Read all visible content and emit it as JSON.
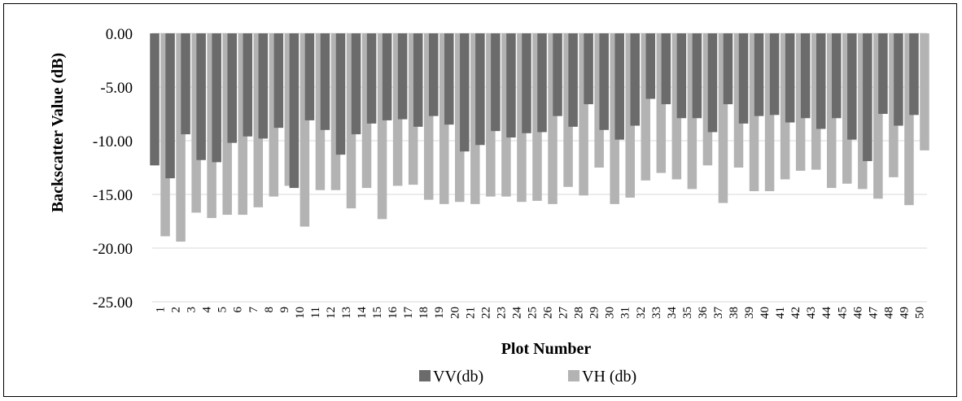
{
  "chart_data": {
    "type": "bar",
    "title": "",
    "xlabel": "Plot Number",
    "ylabel": "Backscatter Value (dB)",
    "ylim": [
      -25,
      0
    ],
    "yticks": [
      "0.00",
      "-5.00",
      "-10.00",
      "-15.00",
      "-20.00",
      "-25.00"
    ],
    "ytick_values": [
      0,
      -5,
      -10,
      -15,
      -20,
      -25
    ],
    "grid": true,
    "legend_position": "bottom",
    "categories": [
      "1",
      "2",
      "3",
      "4",
      "5",
      "6",
      "7",
      "8",
      "9",
      "10",
      "11",
      "12",
      "13",
      "14",
      "15",
      "16",
      "17",
      "18",
      "19",
      "20",
      "21",
      "22",
      "23",
      "24",
      "25",
      "26",
      "27",
      "28",
      "29",
      "30",
      "31",
      "32",
      "33",
      "34",
      "35",
      "36",
      "37",
      "38",
      "39",
      "40",
      "41",
      "42",
      "43",
      "44",
      "45",
      "46",
      "47",
      "48",
      "49",
      "50"
    ],
    "series": [
      {
        "name": "VV(db)",
        "color": "#6b6b6b",
        "values": [
          -12.3,
          -13.5,
          -9.4,
          -11.8,
          -12.0,
          -10.2,
          -9.6,
          -9.8,
          -8.8,
          -14.4,
          -8.1,
          -9.0,
          -11.3,
          -9.4,
          -8.4,
          -8.1,
          -8.0,
          -8.7,
          -7.7,
          -8.5,
          -11.0,
          -10.4,
          -9.1,
          -9.7,
          -9.3,
          -9.2,
          -7.7,
          -8.7,
          -6.6,
          -9.0,
          -9.9,
          -8.6,
          -6.1,
          -6.6,
          -7.9,
          -7.9,
          -9.2,
          -6.6,
          -8.4,
          -7.7,
          -7.6,
          -8.3,
          -7.9,
          -8.9,
          -7.9,
          -9.9,
          -11.9,
          -7.5,
          -8.6,
          -7.6
        ]
      },
      {
        "name": "VH (db)",
        "color": "#b3b3b3",
        "values": [
          -18.9,
          -19.4,
          -16.7,
          -17.2,
          -16.9,
          -16.9,
          -16.2,
          -15.2,
          -14.2,
          -18.0,
          -14.6,
          -14.6,
          -16.3,
          -14.4,
          -17.3,
          -14.2,
          -14.1,
          -15.5,
          -15.9,
          -15.7,
          -15.9,
          -15.2,
          -15.2,
          -15.7,
          -15.6,
          -15.9,
          -14.3,
          -15.1,
          -12.5,
          -15.9,
          -15.3,
          -13.7,
          -13.0,
          -13.6,
          -14.5,
          -12.3,
          -15.8,
          -12.5,
          -14.7,
          -14.7,
          -13.6,
          -12.8,
          -12.7,
          -14.4,
          -14.0,
          -14.5,
          -15.4,
          -13.4,
          -16.0,
          -10.9
        ]
      }
    ]
  }
}
